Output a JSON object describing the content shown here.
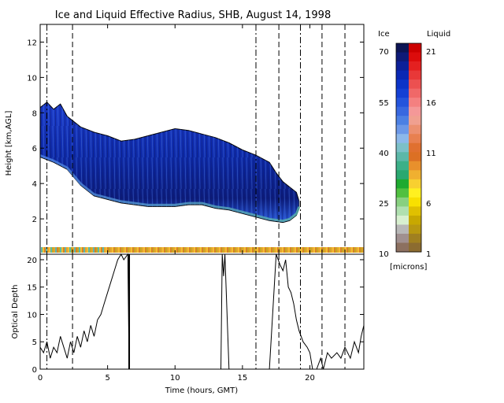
{
  "title": "Ice and Liquid Effective Radius, SHB, August 14, 1998",
  "colorbar": {
    "ice_header": "Ice",
    "liquid_header": "Liquid",
    "units": "[microns]",
    "ice_ticks": [
      "70",
      "55",
      "40",
      "25",
      "10"
    ],
    "liquid_ticks": [
      "21",
      "16",
      "11",
      "6",
      "1"
    ],
    "ice_colors": [
      "#0c1454",
      "#0e1a78",
      "#0c2098",
      "#0a28b4",
      "#0c34c8",
      "#1440d4",
      "#2454dc",
      "#3868e0",
      "#4c80e4",
      "#6c98e8",
      "#8cb8ea",
      "#7cc0c8",
      "#5cb8a8",
      "#3cb088",
      "#2aa870",
      "#1eaa30",
      "#50c040",
      "#88d080",
      "#b0e0b0",
      "#d8f0d0",
      "#b8b8b8",
      "#a09090",
      "#8c7060"
    ],
    "liquid_colors": [
      "#cc0000",
      "#dc0c0c",
      "#e42020",
      "#e83838",
      "#ec5050",
      "#f06868",
      "#f48080",
      "#f49898",
      "#f0a090",
      "#ec9070",
      "#e88050",
      "#e07030",
      "#dc7024",
      "#e8902c",
      "#f0b030",
      "#f8d030",
      "#fff020",
      "#f8e000",
      "#e0c000",
      "#c8a800",
      "#b89810",
      "#a08020",
      "#8c6c30"
    ]
  },
  "chart_data": [
    {
      "type": "heatmap",
      "title": "Ice and Liquid Effective Radius, SHB, August 14, 1998",
      "ylabel": "Height [km,AGL]",
      "xlim": [
        0,
        24
      ],
      "ylim": [
        0,
        13
      ],
      "yticks": [
        2,
        4,
        6,
        8,
        10,
        12
      ],
      "cloud_top_km": [
        [
          0,
          8.3
        ],
        [
          0.5,
          8.6
        ],
        [
          1,
          8.2
        ],
        [
          1.5,
          8.5
        ],
        [
          2,
          7.8
        ],
        [
          3,
          7.2
        ],
        [
          4,
          6.9
        ],
        [
          5,
          6.7
        ],
        [
          6,
          6.4
        ],
        [
          7,
          6.5
        ],
        [
          8,
          6.7
        ],
        [
          9,
          6.9
        ],
        [
          10,
          7.1
        ],
        [
          11,
          7.0
        ],
        [
          12,
          6.8
        ],
        [
          13,
          6.6
        ],
        [
          14,
          6.3
        ],
        [
          15,
          5.9
        ],
        [
          16,
          5.6
        ],
        [
          17,
          5.2
        ],
        [
          17.5,
          4.6
        ],
        [
          18,
          4.1
        ],
        [
          18.5,
          3.8
        ],
        [
          19,
          3.5
        ],
        [
          19.2,
          3.0
        ]
      ],
      "cloud_base_km": [
        [
          0,
          5.5
        ],
        [
          1,
          5.2
        ],
        [
          2,
          4.8
        ],
        [
          3,
          3.9
        ],
        [
          4,
          3.3
        ],
        [
          5,
          3.1
        ],
        [
          6,
          2.9
        ],
        [
          7,
          2.8
        ],
        [
          8,
          2.7
        ],
        [
          9,
          2.7
        ],
        [
          10,
          2.7
        ],
        [
          11,
          2.8
        ],
        [
          12,
          2.8
        ],
        [
          13,
          2.6
        ],
        [
          14,
          2.5
        ],
        [
          15,
          2.3
        ],
        [
          16,
          2.1
        ],
        [
          17,
          1.9
        ],
        [
          18,
          1.8
        ],
        [
          18.5,
          1.9
        ],
        [
          19,
          2.2
        ],
        [
          19.2,
          2.6
        ]
      ],
      "effective_radius_range_microns": {
        "ice": [
          10,
          70
        ],
        "liquid": [
          1,
          21
        ]
      },
      "marker_lines_hours": {
        "dash_dot": [
          0.5,
          16,
          19.3
        ],
        "dashed": [
          2.4,
          17.7,
          20.9,
          22.6
        ]
      }
    },
    {
      "type": "line",
      "ylabel": "Optical Depth",
      "xlabel": "Time (hours, GMT)",
      "xlim": [
        0,
        24
      ],
      "ylim": [
        0,
        21
      ],
      "xticks": [
        0,
        5,
        10,
        15,
        20
      ],
      "yticks": [
        0,
        5,
        10,
        15,
        20
      ],
      "series": [
        {
          "x": [
            0,
            0.25,
            0.5,
            0.75,
            1,
            1.25,
            1.5,
            1.75,
            2,
            2.25,
            2.5,
            2.75,
            3,
            3.25,
            3.5,
            3.75,
            4,
            4.25,
            4.5,
            4.75,
            5,
            5.25,
            5.5,
            5.75,
            6,
            6.2,
            6.5,
            6.6,
            6.8,
            7,
            7.5,
            8,
            9,
            10,
            11,
            12,
            13,
            13.4,
            13.5,
            13.6,
            13.7,
            14,
            15,
            16,
            17,
            17.5,
            17.8,
            18,
            18.2,
            18.4,
            18.6,
            18.8,
            19,
            19.2,
            19.5,
            19.8,
            20,
            20.2,
            20.5,
            20.8,
            21,
            21.3,
            21.6,
            22,
            22.3,
            22.6,
            23,
            23.3,
            23.6,
            23.8,
            24
          ],
          "y": [
            4,
            3,
            5,
            2,
            4,
            3,
            6,
            4,
            2,
            5,
            3,
            6,
            4,
            7,
            5,
            8,
            6,
            9,
            10,
            12,
            14,
            16,
            18,
            20,
            21,
            20,
            21,
            0,
            0,
            0,
            0,
            0,
            0,
            0,
            0,
            0,
            0,
            0,
            21,
            17,
            21,
            0,
            0,
            0,
            0,
            21,
            19,
            18,
            20,
            15,
            14,
            12,
            9,
            7,
            5,
            4,
            3,
            0,
            0,
            2,
            0,
            3,
            2,
            3,
            2,
            4,
            2,
            5,
            3,
            6,
            8
          ]
        }
      ],
      "marker_lines_hours": {
        "dash_dot": [
          0.5,
          16,
          19.3
        ],
        "dashed": [
          2.4,
          17.7,
          20.9,
          22.6
        ],
        "solid": [
          6.6
        ]
      }
    }
  ],
  "top_axis": {
    "label": "Height [km,AGL]",
    "ticks": [
      "2",
      "4",
      "6",
      "8",
      "10",
      "12"
    ]
  },
  "bottom_axis": {
    "label": "Optical Depth",
    "ticks": [
      "0",
      "5",
      "10",
      "15",
      "20"
    ]
  },
  "x_axis": {
    "label": "Time (hours, GMT)",
    "ticks": [
      "0",
      "5",
      "10",
      "15",
      "20"
    ]
  }
}
